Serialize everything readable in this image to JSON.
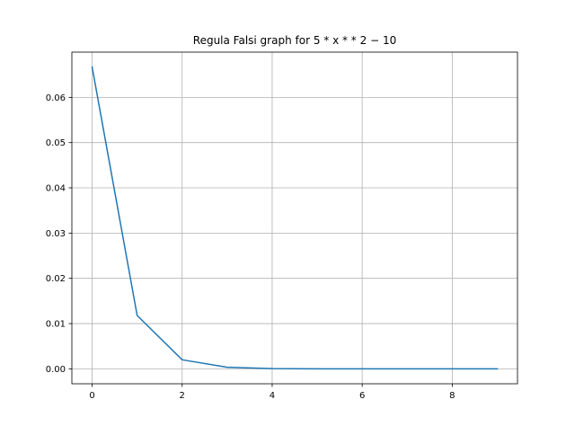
{
  "chart_data": {
    "type": "line",
    "title": "Regula Falsi graph for 5 * x * * 2 − 10",
    "xlabel": "",
    "ylabel": "",
    "x": [
      0,
      1,
      2,
      3,
      4,
      5,
      6,
      7,
      8,
      9
    ],
    "series": [
      {
        "values": [
          0.0667,
          0.0118,
          0.002,
          0.00035,
          6e-05,
          1e-05,
          2e-06,
          3e-07,
          5e-08,
          1e-08
        ],
        "color": "#1f77b4"
      }
    ],
    "xlim": [
      -0.45,
      9.45
    ],
    "ylim": [
      -0.0033,
      0.07
    ],
    "xticks": [
      0,
      2,
      4,
      6,
      8
    ],
    "xtick_labels": [
      "0",
      "2",
      "4",
      "6",
      "8"
    ],
    "yticks": [
      0.0,
      0.01,
      0.02,
      0.03,
      0.04,
      0.05,
      0.06
    ],
    "ytick_labels": [
      "0.00",
      "0.01",
      "0.02",
      "0.03",
      "0.04",
      "0.05",
      "0.06"
    ],
    "grid": true,
    "grid_color": "#b0b0b0",
    "legend": "none"
  }
}
